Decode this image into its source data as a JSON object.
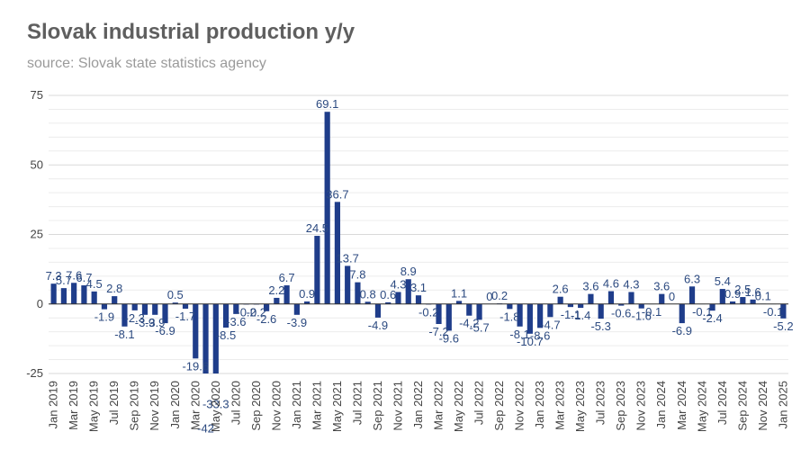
{
  "chart_data": {
    "type": "bar",
    "title": "Slovak industrial production y/y",
    "subtitle": "source: Slovak state statistics agency",
    "xlabel": "",
    "ylabel": "",
    "ylim": [
      -25,
      75
    ],
    "yticks": [
      -25,
      0,
      25,
      50,
      75
    ],
    "grid": true,
    "bar_color": "#1f3d8a",
    "categories": [
      "Jan 2019",
      "Feb 2019",
      "Mar 2019",
      "Apr 2019",
      "May 2019",
      "Jun 2019",
      "Jul 2019",
      "Aug 2019",
      "Sep 2019",
      "Oct 2019",
      "Nov 2019",
      "Dec 2019",
      "Jan 2020",
      "Feb 2020",
      "Mar 2020",
      "Apr 2020",
      "May 2020",
      "Jun 2020",
      "Jul 2020",
      "Aug 2020",
      "Sep 2020",
      "Oct 2020",
      "Nov 2020",
      "Dec 2020",
      "Jan 2021",
      "Feb 2021",
      "Mar 2021",
      "Apr 2021",
      "May 2021",
      "Jun 2021",
      "Jul 2021",
      "Aug 2021",
      "Sep 2021",
      "Oct 2021",
      "Nov 2021",
      "Dec 2021",
      "Jan 2022",
      "Feb 2022",
      "Mar 2022",
      "Apr 2022",
      "May 2022",
      "Jun 2022",
      "Jul 2022",
      "Aug 2022",
      "Sep 2022",
      "Oct 2022",
      "Nov 2022",
      "Dec 2022",
      "Jan 2023",
      "Feb 2023",
      "Mar 2023",
      "Apr 2023",
      "May 2023",
      "Jun 2023",
      "Jul 2023",
      "Aug 2023",
      "Sep 2023",
      "Oct 2023",
      "Nov 2023",
      "Dec 2023",
      "Jan 2024",
      "Feb 2024",
      "Mar 2024",
      "Apr 2024",
      "May 2024",
      "Jun 2024",
      "Jul 2024",
      "Aug 2024",
      "Sep 2024",
      "Oct 2024",
      "Nov 2024",
      "Dec 2024",
      "Jan 2025"
    ],
    "xtick_labels": [
      "Jan 2019",
      "Mar 2019",
      "May 2019",
      "Jul 2019",
      "Sep 2019",
      "Nov 2019",
      "Jan 2020",
      "Mar 2020",
      "May 2020",
      "Jul 2020",
      "Sep 2020",
      "Nov 2020",
      "Jan 2021",
      "Mar 2021",
      "May 2021",
      "Jul 2021",
      "Sep 2021",
      "Nov 2021",
      "Jan 2022",
      "Mar 2022",
      "May 2022",
      "Jul 2022",
      "Sep 2022",
      "Nov 2022",
      "Jan 2023",
      "Mar 2023",
      "May 2023",
      "Jul 2023",
      "Sep 2023",
      "Nov 2023",
      "Jan 2024",
      "Mar 2024",
      "May 2024",
      "Jul 2024",
      "Sep 2024",
      "Nov 2024",
      "Jan 2025"
    ],
    "values": [
      7.3,
      5.7,
      7.6,
      6.7,
      4.5,
      -1.9,
      2.8,
      -8.1,
      -2.3,
      -3.9,
      -3.9,
      -6.9,
      0.5,
      -1.7,
      -19.6,
      -42,
      -33.3,
      -8.5,
      -3.6,
      -0.2,
      -0.2,
      -2.6,
      2.2,
      6.7,
      -3.9,
      0.9,
      24.5,
      69.1,
      36.7,
      13.7,
      7.8,
      0.8,
      -4.9,
      0.6,
      4.3,
      8.9,
      3.1,
      -0.2,
      -7.2,
      -9.6,
      1.1,
      -4.2,
      -5.7,
      0,
      0.2,
      -1.8,
      -8.1,
      -10.7,
      -8.6,
      -4.7,
      2.6,
      -1.1,
      -1.4,
      3.6,
      -5.3,
      4.6,
      -0.6,
      4.3,
      -1.6,
      -0.1,
      3.6,
      0,
      -6.9,
      6.3,
      -0.1,
      -2.4,
      5.4,
      0.9,
      2.5,
      1.6,
      0.1,
      -0.1,
      -5.2
    ],
    "data_labels": [
      "7.3",
      "5.7",
      "7.6",
      "6.7",
      "4.5",
      "-1.9",
      "2.8",
      "-8.1",
      "-2.3",
      "-3.9",
      "-3.9",
      "-6.9",
      "0.5",
      "-1.7",
      "-19.6",
      "-42",
      "-33.3",
      "-8.5",
      "-3.6",
      "-0.2",
      "-0.2",
      "-2.6",
      "2.2",
      "6.7",
      "-3.9",
      "0.9",
      "24.5",
      "69.1",
      "36.7",
      "13.7",
      "7.8",
      "0.8",
      "-4.9",
      "0.6",
      "4.3",
      "8.9",
      "3.1",
      "-0.2",
      "-7.2",
      "-9.6",
      "1.1",
      "-4.2",
      "-5.7",
      "0",
      "0.2",
      "-1.8",
      "-8.1",
      "-10.7",
      "-8.6",
      "-4.7",
      "2.6",
      "-1.1",
      "-1.4",
      "3.6",
      "-5.3",
      "4.6",
      "-0.6",
      "4.3",
      "-1.6",
      "-0.1",
      "3.6",
      "0",
      "-6.9",
      "6.3",
      "-0.1",
      "-2.4",
      "5.4",
      "0.9",
      "2.5",
      "1.6",
      "0.1",
      "-0.1",
      "-5.2"
    ]
  }
}
